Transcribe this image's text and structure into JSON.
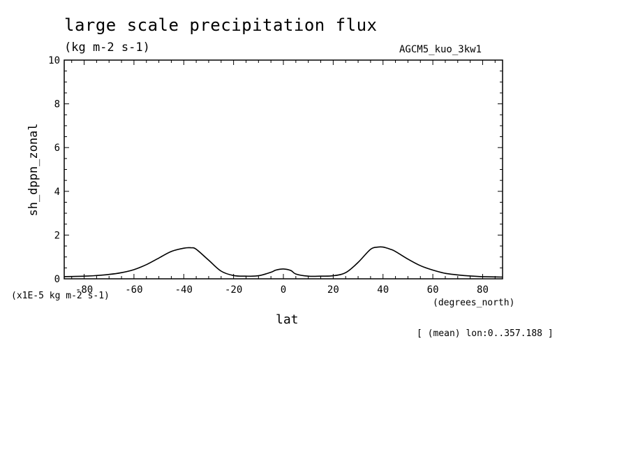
{
  "chart_data": {
    "type": "line",
    "title": "large scale precipitation flux",
    "subtitle": "(kg m-2 s-1)",
    "model_label": "AGCM5_kuo_3kw1",
    "ylabel": "sh_dppn_zonal",
    "y_scale_label": "(x1E-5 kg m-2 s-1)",
    "xlabel": "lat",
    "x_units": "(degrees_north)",
    "note": "[ (mean) lon:0..357.188 ]",
    "xlim": [
      -88,
      88
    ],
    "ylim": [
      0,
      10
    ],
    "x_ticks": [
      -80,
      -60,
      -40,
      -20,
      0,
      20,
      40,
      60,
      80
    ],
    "x_tick_labels": [
      "-80",
      "-60",
      "-40",
      "-20",
      "0",
      "20",
      "40",
      "60",
      "80"
    ],
    "y_ticks": [
      0,
      2,
      4,
      6,
      8,
      10
    ],
    "y_tick_labels": [
      "0",
      "2",
      "4",
      "6",
      "8",
      "10"
    ],
    "grid": false,
    "series": [
      {
        "x": [
          -88,
          -80,
          -75,
          -70,
          -65,
          -60,
          -55,
          -50,
          -45,
          -40,
          -37,
          -35,
          -30,
          -25,
          -20,
          -15,
          -10,
          -5,
          -3,
          0,
          3,
          5,
          10,
          15,
          20,
          25,
          30,
          35,
          38,
          40,
          43,
          45,
          50,
          55,
          60,
          65,
          70,
          75,
          80,
          88
        ],
        "y": [
          0.1,
          0.12,
          0.15,
          0.2,
          0.28,
          0.42,
          0.65,
          0.95,
          1.25,
          1.4,
          1.42,
          1.35,
          0.85,
          0.35,
          0.15,
          0.12,
          0.14,
          0.3,
          0.4,
          0.45,
          0.38,
          0.22,
          0.12,
          0.12,
          0.14,
          0.28,
          0.75,
          1.35,
          1.45,
          1.45,
          1.35,
          1.25,
          0.9,
          0.6,
          0.4,
          0.25,
          0.18,
          0.13,
          0.1,
          0.08
        ]
      }
    ]
  }
}
